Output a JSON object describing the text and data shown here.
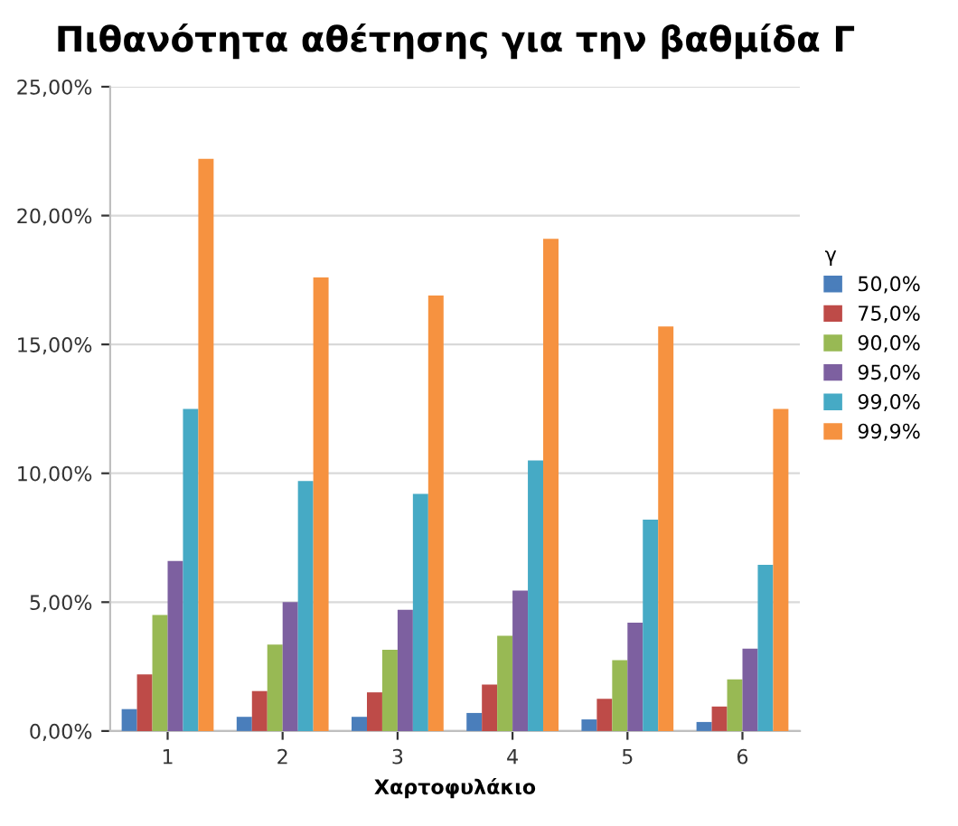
{
  "chart_data": {
    "type": "bar",
    "title": "Πιθανότητα αθέτησης για την βαθμίδα Γ",
    "xlabel": "Χαρτοφυλάκιο",
    "legend_title": "γ",
    "categories": [
      "1",
      "2",
      "3",
      "4",
      "5",
      "6"
    ],
    "series": [
      {
        "name": "50,0%",
        "color": "#4a7ebb",
        "values": [
          0.85,
          0.55,
          0.55,
          0.7,
          0.45,
          0.35
        ]
      },
      {
        "name": "75,0%",
        "color": "#be4b48",
        "values": [
          2.2,
          1.55,
          1.5,
          1.8,
          1.25,
          0.95
        ]
      },
      {
        "name": "90,0%",
        "color": "#98b954",
        "values": [
          4.5,
          3.35,
          3.15,
          3.7,
          2.75,
          2.0
        ]
      },
      {
        "name": "95,0%",
        "color": "#7d60a0",
        "values": [
          6.6,
          5.0,
          4.7,
          5.45,
          4.2,
          3.2
        ]
      },
      {
        "name": "99,0%",
        "color": "#46aac5",
        "values": [
          12.5,
          9.7,
          9.2,
          10.5,
          8.2,
          6.45
        ]
      },
      {
        "name": "99,9%",
        "color": "#f69240",
        "values": [
          22.2,
          17.6,
          16.9,
          19.1,
          15.7,
          12.5
        ]
      }
    ],
    "ylim": [
      0,
      25
    ],
    "yticks": [
      {
        "value": 0,
        "label": "0,00%"
      },
      {
        "value": 5,
        "label": "5,00%"
      },
      {
        "value": 10,
        "label": "10,00%"
      },
      {
        "value": 15,
        "label": "15,00%"
      },
      {
        "value": 20,
        "label": "20,00%"
      },
      {
        "value": 25,
        "label": "25,00%"
      }
    ],
    "grid": "y",
    "legend": "right"
  }
}
